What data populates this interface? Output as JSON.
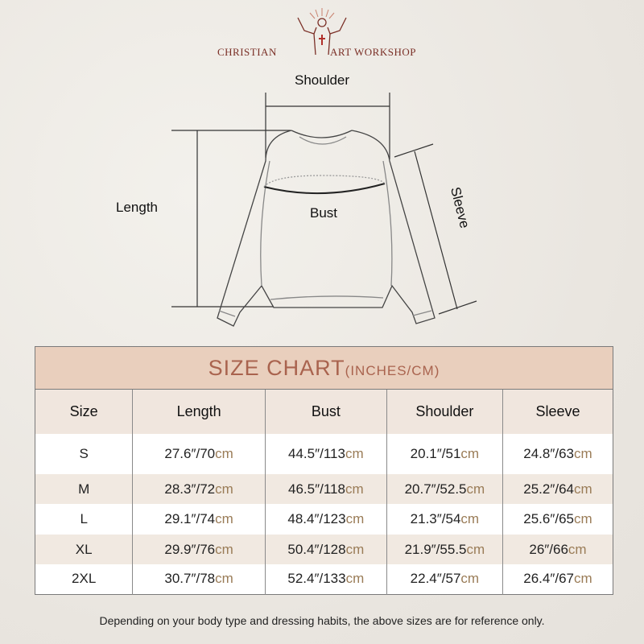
{
  "brand": {
    "left": "CHRISTIAN",
    "right": "ART WORKSHOP"
  },
  "diagram": {
    "shoulder": "Shoulder",
    "length": "Length",
    "bust": "Bust",
    "sleeve": "Sleeve"
  },
  "table": {
    "title": "SIZE CHART",
    "title_units": "(INCHES/CM)",
    "headers": [
      "Size",
      "Length",
      "Bust",
      "Shoulder",
      "Sleeve"
    ],
    "unit_cm": "cm",
    "rows": [
      {
        "size": "S",
        "cells": [
          "27.6″/70",
          "44.5″/113",
          "20.1″/51",
          "24.8″/63"
        ]
      },
      {
        "size": "M",
        "cells": [
          "28.3″/72",
          "46.5″/118",
          "20.7″/52.5",
          "25.2″/64"
        ]
      },
      {
        "size": "L",
        "cells": [
          "29.1″/74",
          "48.4″/123",
          "21.3″/54",
          "25.6″/65"
        ]
      },
      {
        "size": "XL",
        "cells": [
          "29.9″/76",
          "50.4″/128",
          "21.9″/55.5",
          "26″/66"
        ]
      },
      {
        "size": "2XL",
        "cells": [
          "30.7″/78",
          "52.4″/133",
          "22.4″/57",
          "26.4″/67"
        ]
      }
    ]
  },
  "note": "Depending on your body type and dressing habits, the above sizes are for reference only.",
  "colors": {
    "brand": "#7a2f26",
    "title_band": "#e9cfbd",
    "title_text": "#a9634e",
    "cm_text": "#9a7c57"
  }
}
